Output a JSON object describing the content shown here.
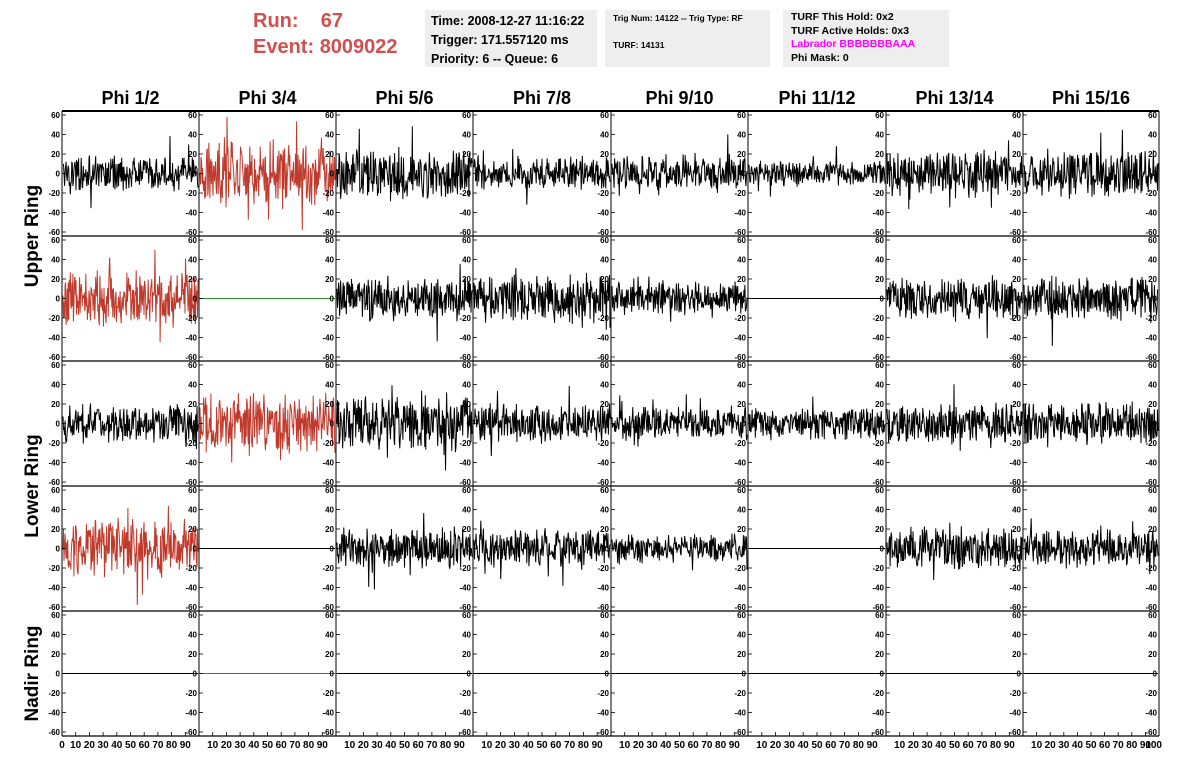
{
  "header": {
    "run_label": "Run:",
    "run_value": "67",
    "event_label": "Event:",
    "event_value": "8009022"
  },
  "info_time": {
    "time": "Time: 2008-12-27 11:16:22",
    "trigger": "Trigger: 171.557120 ms",
    "priority": "Priority: 6 -- Queue: 6"
  },
  "info_trig": {
    "trig_line": "Trig Num: 14122 -- Trig Type: RF",
    "turf_line": "TURF: 14131"
  },
  "info_turf": {
    "this_hold": "TURF This Hold: 0x2",
    "active_holds": "TURF Active Holds: 0x3",
    "labrador": "Labrador BBBBBBBAAA",
    "phi_mask": "Phi Mask: 0"
  },
  "chart_data": {
    "type": "line",
    "columns": [
      "Phi 1/2",
      "Phi 3/4",
      "Phi 5/6",
      "Phi 7/8",
      "Phi 9/10",
      "Phi 11/12",
      "Phi 13/14",
      "Phi 15/16"
    ],
    "ring_labels": [
      "Upper Ring",
      "Lower Ring",
      "Nadir Ring"
    ],
    "ylim": [
      -60,
      60
    ],
    "xlim": [
      0,
      100
    ],
    "y_ticks": [
      -60,
      -40,
      -20,
      0,
      20,
      40,
      60
    ],
    "x_ticks": [
      0,
      10,
      20,
      30,
      40,
      50,
      60,
      70,
      80,
      90,
      100
    ],
    "colors": {
      "normal": "#000000",
      "highlight": "#c0392b",
      "flat_green": "#2e8b2e"
    },
    "panels": [
      [
        {
          "amp": 11,
          "color": "normal"
        },
        {
          "amp": 20,
          "color": "highlight"
        },
        {
          "amp": 16,
          "color": "normal"
        },
        {
          "amp": 11,
          "color": "normal"
        },
        {
          "amp": 12,
          "color": "normal"
        },
        {
          "amp": 8,
          "color": "normal"
        },
        {
          "amp": 15,
          "color": "normal"
        },
        {
          "amp": 15,
          "color": "normal"
        }
      ],
      [
        {
          "amp": 18,
          "color": "highlight"
        },
        {
          "amp": 0,
          "color": "flat_green"
        },
        {
          "amp": 14,
          "color": "normal"
        },
        {
          "amp": 16,
          "color": "normal"
        },
        {
          "amp": 10,
          "color": "normal"
        },
        {
          "amp": 0,
          "color": "normal"
        },
        {
          "amp": 13,
          "color": "normal"
        },
        {
          "amp": 14,
          "color": "normal"
        }
      ],
      [
        {
          "amp": 12,
          "color": "normal"
        },
        {
          "amp": 19,
          "color": "highlight"
        },
        {
          "amp": 18,
          "color": "normal"
        },
        {
          "amp": 12,
          "color": "normal"
        },
        {
          "amp": 11,
          "color": "normal"
        },
        {
          "amp": 11,
          "color": "normal"
        },
        {
          "amp": 13,
          "color": "normal"
        },
        {
          "amp": 14,
          "color": "normal"
        }
      ],
      [
        {
          "amp": 18,
          "color": "highlight"
        },
        {
          "amp": 0,
          "color": "normal"
        },
        {
          "amp": 13,
          "color": "normal"
        },
        {
          "amp": 12,
          "color": "normal"
        },
        {
          "amp": 9,
          "color": "normal"
        },
        {
          "amp": 0,
          "color": "normal"
        },
        {
          "amp": 13,
          "color": "normal"
        },
        {
          "amp": 12,
          "color": "normal"
        }
      ],
      [
        {
          "amp": 0,
          "color": "normal"
        },
        {
          "amp": 0,
          "color": "highlight"
        },
        {
          "amp": 0,
          "color": "normal"
        },
        {
          "amp": 0,
          "color": "normal"
        },
        {
          "amp": 0,
          "color": "normal"
        },
        {
          "amp": 0,
          "color": "normal"
        },
        {
          "amp": 0,
          "color": "normal"
        },
        {
          "amp": 0,
          "color": "normal"
        }
      ]
    ]
  }
}
